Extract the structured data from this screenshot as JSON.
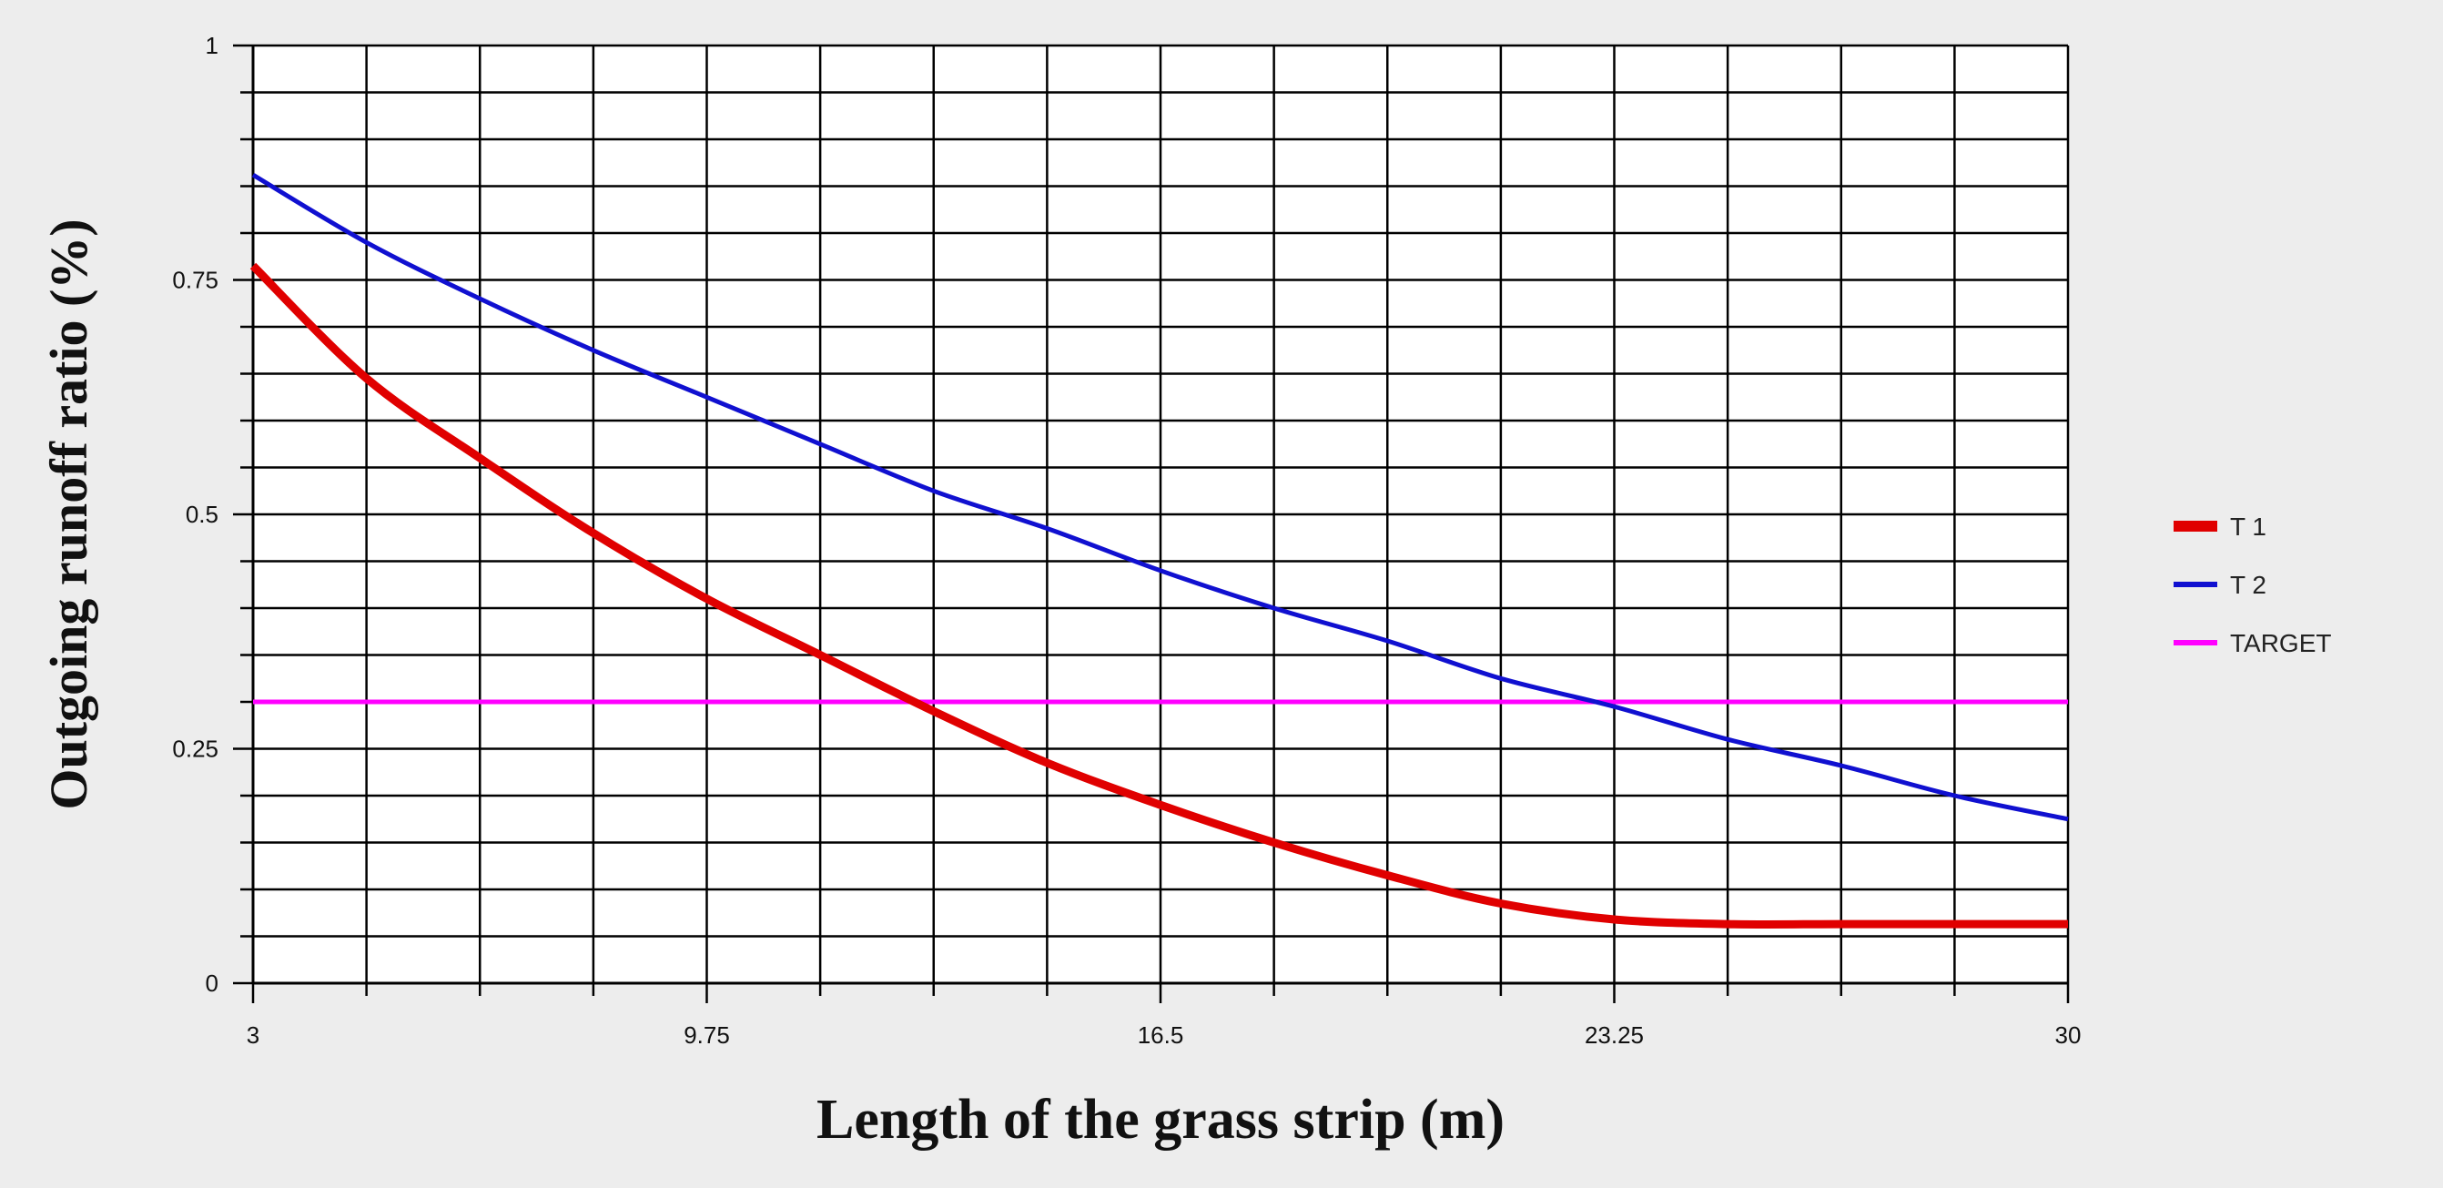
{
  "chart_data": {
    "type": "line",
    "title": "",
    "xlabel": "Length of the grass strip (m)",
    "ylabel": "Outgoing runoff ratio (%)",
    "xlim": [
      3,
      30
    ],
    "ylim": [
      0,
      1
    ],
    "x_ticks": [
      "3",
      "9.75",
      "16.5",
      "23.25",
      "30"
    ],
    "y_ticks": [
      "0",
      "0.25",
      "0.5",
      "0.75",
      "1"
    ],
    "x_tick_values": [
      3,
      9.75,
      16.5,
      23.25,
      30
    ],
    "y_tick_values": [
      0,
      0.25,
      0.5,
      0.75,
      1
    ],
    "grid": true,
    "grid_x_divisions": 16,
    "grid_y_divisions": 20,
    "legend_position": "right",
    "series": [
      {
        "name": "T 1",
        "color": "#e00000",
        "x": [
          3,
          4.6875,
          6.375,
          8.0625,
          9.75,
          11.4375,
          13.125,
          14.8125,
          16.5,
          18.1875,
          19.875,
          21.5625,
          23.25,
          24.9375,
          26.625,
          28.3125,
          30
        ],
        "y": [
          0.765,
          0.645,
          0.56,
          0.48,
          0.41,
          0.35,
          0.29,
          0.235,
          0.19,
          0.15,
          0.115,
          0.085,
          0.068,
          0.063,
          0.063,
          0.063,
          0.063
        ]
      },
      {
        "name": "T 2",
        "color": "#1010d0",
        "x": [
          3,
          4.6875,
          6.375,
          8.0625,
          9.75,
          11.4375,
          13.125,
          14.8125,
          16.5,
          18.1875,
          19.875,
          21.5625,
          23.25,
          24.9375,
          26.625,
          28.3125,
          30
        ],
        "y": [
          0.862,
          0.79,
          0.73,
          0.675,
          0.625,
          0.575,
          0.525,
          0.485,
          0.44,
          0.4,
          0.365,
          0.325,
          0.295,
          0.26,
          0.232,
          0.2,
          0.175
        ]
      },
      {
        "name": "TARGET",
        "color": "#ff00ff",
        "x": [
          3,
          30
        ],
        "y": [
          0.3,
          0.3
        ]
      }
    ]
  }
}
